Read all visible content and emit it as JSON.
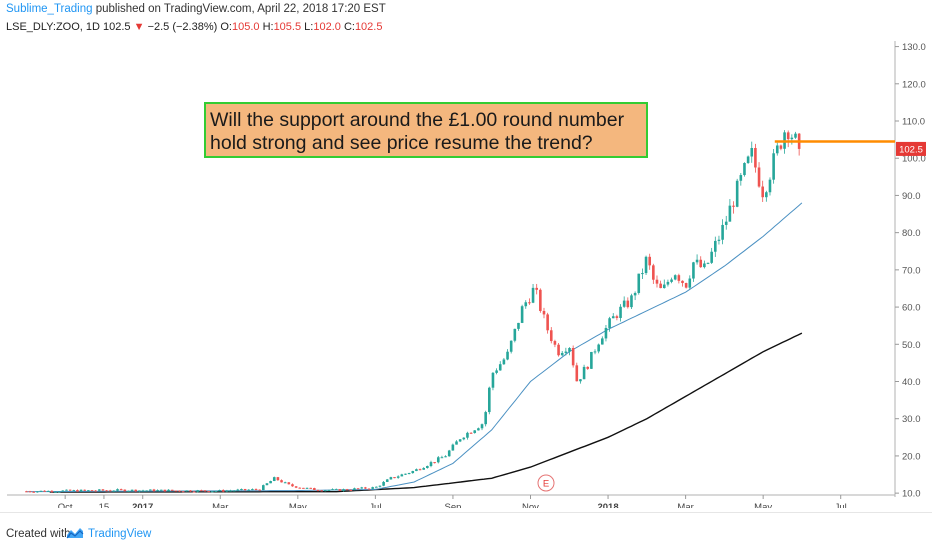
{
  "header": {
    "author": "Sublime_Trading",
    "published_text": "published on TradingView.com, April 22, 2018 17:20 EST",
    "symbol": "LSE_DLY:ZOO, 1D",
    "last": "102.5",
    "change": "−2.5 (−2.38%)",
    "o_label": "O:",
    "o_value": "105.0",
    "h_label": "H:",
    "h_value": "105.5",
    "l_label": "L:",
    "l_value": "102.0",
    "c_label": "C:",
    "c_value": "102.5"
  },
  "chart_data": {
    "type": "candlestick",
    "ylim": [
      10,
      130
    ],
    "y_ticks": [
      "10.0",
      "20.0",
      "30.0",
      "40.0",
      "50.0",
      "60.0",
      "70.0",
      "80.0",
      "90.0",
      "100.0",
      "110.0",
      "120.0",
      "130.0"
    ],
    "x_ticks": [
      {
        "t": 0.5,
        "label": "Oct",
        "bold": false
      },
      {
        "t": 1.0,
        "label": "15",
        "bold": false
      },
      {
        "t": 1.5,
        "label": "2017",
        "bold": true
      },
      {
        "t": 2.5,
        "label": "Mar",
        "bold": false
      },
      {
        "t": 3.5,
        "label": "May",
        "bold": false
      },
      {
        "t": 4.5,
        "label": "Jul",
        "bold": false
      },
      {
        "t": 5.5,
        "label": "Sep",
        "bold": false
      },
      {
        "t": 6.5,
        "label": "Nov",
        "bold": false
      },
      {
        "t": 7.5,
        "label": "2018",
        "bold": true
      },
      {
        "t": 8.5,
        "label": "Mar",
        "bold": false
      },
      {
        "t": 9.5,
        "label": "May",
        "bold": false
      },
      {
        "t": 10.5,
        "label": "Jul",
        "bold": false
      }
    ],
    "price_anchors": [
      [
        0,
        10.5
      ],
      [
        1.2,
        10.8
      ],
      [
        2.5,
        10.6
      ],
      [
        3.0,
        11
      ],
      [
        3.2,
        14
      ],
      [
        3.4,
        12
      ],
      [
        3.7,
        11
      ],
      [
        4.0,
        10.8
      ],
      [
        4.5,
        11.5
      ],
      [
        4.7,
        14
      ],
      [
        5.0,
        16
      ],
      [
        5.4,
        20
      ],
      [
        5.6,
        25
      ],
      [
        5.9,
        29
      ],
      [
        6.0,
        42
      ],
      [
        6.2,
        47
      ],
      [
        6.4,
        60
      ],
      [
        6.55,
        65
      ],
      [
        6.7,
        55
      ],
      [
        6.85,
        48
      ],
      [
        7.0,
        50
      ],
      [
        7.1,
        40
      ],
      [
        7.25,
        45
      ],
      [
        7.4,
        52
      ],
      [
        7.6,
        58
      ],
      [
        7.8,
        62
      ],
      [
        8.0,
        73
      ],
      [
        8.1,
        66
      ],
      [
        8.2,
        64
      ],
      [
        8.35,
        70
      ],
      [
        8.5,
        66
      ],
      [
        8.6,
        72
      ],
      [
        8.75,
        70
      ],
      [
        8.85,
        75
      ],
      [
        9.0,
        82
      ],
      [
        9.1,
        88
      ],
      [
        9.25,
        96
      ],
      [
        9.35,
        101
      ],
      [
        9.5,
        91
      ],
      [
        9.6,
        97
      ],
      [
        9.7,
        103
      ],
      [
        9.8,
        109
      ],
      [
        9.88,
        106
      ],
      [
        9.95,
        103
      ],
      [
        10.0,
        102.5
      ]
    ],
    "ma50_anchors": [
      [
        0,
        10.4
      ],
      [
        3.5,
        10.7
      ],
      [
        4.5,
        11
      ],
      [
        5.0,
        13
      ],
      [
        5.5,
        18
      ],
      [
        6.0,
        27
      ],
      [
        6.5,
        40
      ],
      [
        7.0,
        48
      ],
      [
        7.5,
        54
      ],
      [
        8.0,
        59
      ],
      [
        8.5,
        64
      ],
      [
        9.0,
        71
      ],
      [
        9.5,
        79
      ],
      [
        10.0,
        88
      ]
    ],
    "ma200_anchors": [
      [
        0.3,
        10.3
      ],
      [
        4.0,
        10.4
      ],
      [
        5.0,
        11.5
      ],
      [
        6.0,
        14
      ],
      [
        6.5,
        17
      ],
      [
        7.0,
        21
      ],
      [
        7.5,
        25
      ],
      [
        8.0,
        30
      ],
      [
        8.5,
        36
      ],
      [
        9.0,
        42
      ],
      [
        9.5,
        48
      ],
      [
        10.0,
        53
      ]
    ],
    "support_level": 104.5,
    "last_price_label": "102.5",
    "event_marker": {
      "label": "E",
      "t": 6.7
    },
    "annotation": {
      "line1": "Will the support around the £1.00 round number",
      "line2": "hold strong and see price resume the trend?"
    },
    "colors": {
      "up": "#26a69a",
      "down": "#ef5350",
      "ma50": "#4a90c2",
      "ma200": "#111111",
      "support": "#ff8c00",
      "annotation_bg": "#f4b77e",
      "annotation_border": "#33cc33",
      "price_label_bg": "#e53935"
    }
  },
  "footer": {
    "created_with": "Created with",
    "brand": "TradingView"
  }
}
